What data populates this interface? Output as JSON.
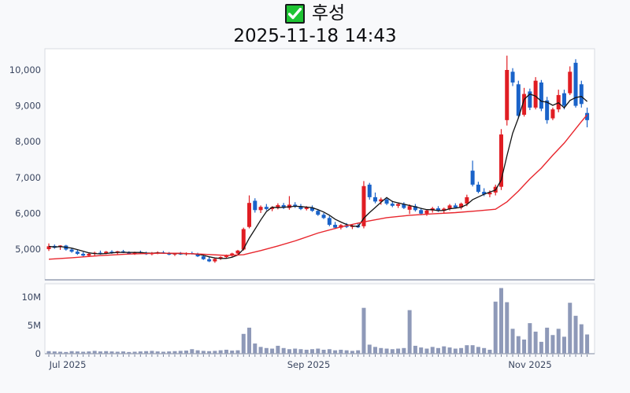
{
  "header": {
    "title": "후성",
    "subtitle": "2025-11-18 14:43",
    "checkbox_icon": "check"
  },
  "colors": {
    "up": "#e01d23",
    "down": "#1a63c9",
    "ma_short": "#141414",
    "ma_long": "#e8262d",
    "volume_bar": "#8e99b8",
    "axis_text": "#3a4660",
    "pane_bg": "#ffffff",
    "page_bg": "#f8f9fb",
    "spine_light": "#d7dbe2",
    "spine_dark": "#97a0b3",
    "checkbox_green": "#1ec433"
  },
  "chart_data": {
    "type": "candlestick+volume-bar",
    "title": "후성",
    "timestamp": "2025-11-18 14:43",
    "x_axis": {
      "labels": [
        "Jul 2025",
        "Sep 2025",
        "Nov 2025"
      ],
      "grid": false
    },
    "price_axis": {
      "tick_labels": [
        "5,000",
        "6,000",
        "7,000",
        "8,000",
        "9,000",
        "10,000"
      ],
      "tick_values": [
        5000,
        6000,
        7000,
        8000,
        9000,
        10000
      ],
      "range": [
        4180,
        10620
      ]
    },
    "volume_axis": {
      "tick_labels": [
        "0",
        "5M",
        "10M"
      ],
      "tick_values": [
        0,
        5,
        10
      ],
      "unit": "millions of shares",
      "range": [
        0,
        12.3
      ]
    },
    "series": {
      "dates": [
        "2025-07-01",
        "2025-07-02",
        "2025-07-03",
        "2025-07-04",
        "2025-07-07",
        "2025-07-08",
        "2025-07-09",
        "2025-07-10",
        "2025-07-11",
        "2025-07-14",
        "2025-07-15",
        "2025-07-16",
        "2025-07-17",
        "2025-07-18",
        "2025-07-21",
        "2025-07-22",
        "2025-07-23",
        "2025-07-24",
        "2025-07-25",
        "2025-07-28",
        "2025-07-29",
        "2025-07-30",
        "2025-07-31",
        "2025-08-01",
        "2025-08-04",
        "2025-08-05",
        "2025-08-06",
        "2025-08-07",
        "2025-08-08",
        "2025-08-11",
        "2025-08-12",
        "2025-08-13",
        "2025-08-14",
        "2025-08-18",
        "2025-08-19",
        "2025-08-20",
        "2025-08-21",
        "2025-08-22",
        "2025-08-25",
        "2025-08-26",
        "2025-08-27",
        "2025-08-28",
        "2025-08-29",
        "2025-09-01",
        "2025-09-02",
        "2025-09-03",
        "2025-09-04",
        "2025-09-05",
        "2025-09-08",
        "2025-09-09",
        "2025-09-10",
        "2025-09-11",
        "2025-09-12",
        "2025-09-15",
        "2025-09-16",
        "2025-09-17",
        "2025-09-18",
        "2025-09-19",
        "2025-09-22",
        "2025-09-23",
        "2025-09-24",
        "2025-09-25",
        "2025-09-26",
        "2025-09-29",
        "2025-09-30",
        "2025-10-01",
        "2025-10-02",
        "2025-10-10",
        "2025-10-13",
        "2025-10-14",
        "2025-10-15",
        "2025-10-16",
        "2025-10-17",
        "2025-10-20",
        "2025-10-21",
        "2025-10-22",
        "2025-10-23",
        "2025-10-24",
        "2025-10-27",
        "2025-10-28",
        "2025-10-29",
        "2025-10-30",
        "2025-10-31",
        "2025-11-03",
        "2025-11-04",
        "2025-11-05",
        "2025-11-06",
        "2025-11-07",
        "2025-11-10",
        "2025-11-11",
        "2025-11-12",
        "2025-11-13",
        "2025-11-14",
        "2025-11-17",
        "2025-11-18"
      ],
      "open": [
        5000,
        5090,
        5060,
        5100,
        4990,
        4930,
        4870,
        4820,
        4870,
        4900,
        4880,
        4930,
        4900,
        4940,
        4910,
        4870,
        4920,
        4900,
        4860,
        4890,
        4910,
        4890,
        4850,
        4880,
        4860,
        4890,
        4870,
        4800,
        4720,
        4660,
        4730,
        4780,
        4830,
        4880,
        4990,
        5620,
        6350,
        6090,
        6180,
        6120,
        6170,
        6230,
        6150,
        6240,
        6200,
        6120,
        6160,
        6070,
        5960,
        5870,
        5680,
        5600,
        5670,
        5620,
        5660,
        5640,
        6800,
        6450,
        6330,
        6390,
        6270,
        6210,
        6260,
        6100,
        6200,
        6090,
        5990,
        6080,
        6140,
        6070,
        6130,
        6220,
        6160,
        6270,
        7190,
        6800,
        6600,
        6530,
        6580,
        6740,
        8600,
        9950,
        9600,
        8750,
        9400,
        8950,
        9650,
        9150,
        8650,
        8900,
        9350,
        9350,
        10200,
        9600,
        8800
      ],
      "high": [
        5160,
        5130,
        5110,
        5120,
        5040,
        4990,
        4920,
        4900,
        4930,
        4960,
        4950,
        4970,
        4950,
        4980,
        4940,
        4930,
        4960,
        4930,
        4920,
        4940,
        4950,
        4920,
        4900,
        4920,
        4910,
        4930,
        4900,
        4840,
        4780,
        4750,
        4800,
        4850,
        4900,
        4980,
        5600,
        6500,
        6420,
        6220,
        6260,
        6200,
        6280,
        6290,
        6480,
        6310,
        6260,
        6200,
        6220,
        6120,
        6010,
        5920,
        5760,
        5700,
        5730,
        5690,
        5720,
        6900,
        6850,
        6580,
        6440,
        6450,
        6350,
        6300,
        6310,
        6250,
        6260,
        6150,
        6110,
        6180,
        6200,
        6160,
        6260,
        6280,
        6300,
        6520,
        7470,
        6880,
        6700,
        6640,
        6800,
        8350,
        10400,
        10050,
        9700,
        9500,
        9480,
        9800,
        9720,
        9250,
        8950,
        9450,
        9450,
        10100,
        10300,
        9700,
        8950
      ],
      "low": [
        4950,
        5010,
        4980,
        4960,
        4900,
        4840,
        4790,
        4780,
        4820,
        4850,
        4860,
        4870,
        4850,
        4890,
        4850,
        4840,
        4880,
        4840,
        4830,
        4860,
        4870,
        4830,
        4810,
        4840,
        4820,
        4850,
        4780,
        4700,
        4640,
        4620,
        4700,
        4740,
        4790,
        4850,
        4960,
        5580,
        6020,
        6010,
        6080,
        6060,
        6110,
        6120,
        6100,
        6150,
        6090,
        6080,
        6040,
        5930,
        5840,
        5640,
        5560,
        5550,
        5590,
        5560,
        5590,
        5580,
        6380,
        6280,
        6240,
        6230,
        6170,
        6150,
        6120,
        5980,
        6050,
        5950,
        5930,
        6020,
        6040,
        6010,
        6080,
        6130,
        6110,
        6200,
        6750,
        6560,
        6480,
        6450,
        6500,
        6650,
        8450,
        9550,
        8650,
        8700,
        8880,
        8900,
        8850,
        8500,
        8600,
        8820,
        8900,
        9300,
        8950,
        8950,
        8400
      ],
      "close": [
        5080,
        5040,
        5100,
        4990,
        4930,
        4870,
        4820,
        4870,
        4900,
        4880,
        4930,
        4900,
        4940,
        4910,
        4870,
        4920,
        4900,
        4860,
        4890,
        4910,
        4890,
        4850,
        4880,
        4860,
        4890,
        4870,
        4800,
        4720,
        4660,
        4730,
        4780,
        4830,
        4880,
        4960,
        5560,
        6290,
        6090,
        6180,
        6120,
        6170,
        6230,
        6150,
        6240,
        6200,
        6120,
        6160,
        6070,
        5960,
        5870,
        5680,
        5600,
        5670,
        5620,
        5660,
        5610,
        6760,
        6450,
        6330,
        6390,
        6270,
        6210,
        6260,
        6150,
        6200,
        6090,
        5990,
        6080,
        6140,
        6070,
        6130,
        6220,
        6160,
        6270,
        6450,
        6800,
        6600,
        6530,
        6580,
        6740,
        8200,
        10000,
        9650,
        8720,
        9330,
        8950,
        9700,
        8920,
        8600,
        8900,
        9300,
        9000,
        9950,
        9000,
        9050,
        8600
      ],
      "volume_m": [
        0.45,
        0.4,
        0.35,
        0.3,
        0.45,
        0.4,
        0.35,
        0.4,
        0.5,
        0.4,
        0.45,
        0.4,
        0.35,
        0.4,
        0.3,
        0.35,
        0.4,
        0.45,
        0.5,
        0.4,
        0.35,
        0.4,
        0.45,
        0.5,
        0.55,
        0.8,
        0.6,
        0.5,
        0.45,
        0.5,
        0.6,
        0.7,
        0.55,
        0.6,
        3.5,
        4.6,
        1.8,
        1.2,
        1.0,
        0.9,
        1.4,
        1.0,
        0.8,
        0.9,
        0.8,
        0.7,
        0.8,
        0.9,
        0.7,
        0.8,
        0.6,
        0.7,
        0.6,
        0.5,
        0.6,
        8.1,
        1.6,
        1.2,
        1.0,
        0.9,
        0.8,
        0.9,
        1.0,
        7.7,
        1.4,
        1.1,
        0.9,
        1.2,
        1.0,
        1.3,
        1.1,
        0.9,
        1.0,
        1.5,
        1.5,
        1.2,
        1.0,
        0.7,
        9.2,
        11.6,
        9.1,
        4.4,
        3.1,
        2.5,
        5.4,
        3.9,
        2.1,
        4.6,
        3.3,
        4.4,
        3.0,
        9.0,
        6.7,
        5.2,
        3.4
      ]
    },
    "moving_averages": {
      "short": {
        "window": 5,
        "color": "black"
      },
      "long": {
        "description": "slow trend line",
        "color": "red",
        "points": [
          [
            1,
            4720
          ],
          [
            5,
            4760
          ],
          [
            10,
            4820
          ],
          [
            15,
            4865
          ],
          [
            20,
            4885
          ],
          [
            24,
            4885
          ],
          [
            28,
            4860
          ],
          [
            32,
            4825
          ],
          [
            35,
            4845
          ],
          [
            38,
            4960
          ],
          [
            41,
            5090
          ],
          [
            44,
            5230
          ],
          [
            48,
            5450
          ],
          [
            52,
            5620
          ],
          [
            56,
            5760
          ],
          [
            60,
            5880
          ],
          [
            64,
            5945
          ],
          [
            68,
            5985
          ],
          [
            72,
            6020
          ],
          [
            76,
            6070
          ],
          [
            79,
            6115
          ],
          [
            81,
            6320
          ],
          [
            83,
            6620
          ],
          [
            85,
            6960
          ],
          [
            87,
            7260
          ],
          [
            89,
            7620
          ],
          [
            91,
            7960
          ],
          [
            93,
            8360
          ],
          [
            94,
            8560
          ],
          [
            95,
            8750
          ]
        ]
      }
    },
    "candle_colors": {
      "up": "red",
      "down": "blue"
    },
    "legend_position": "none"
  }
}
